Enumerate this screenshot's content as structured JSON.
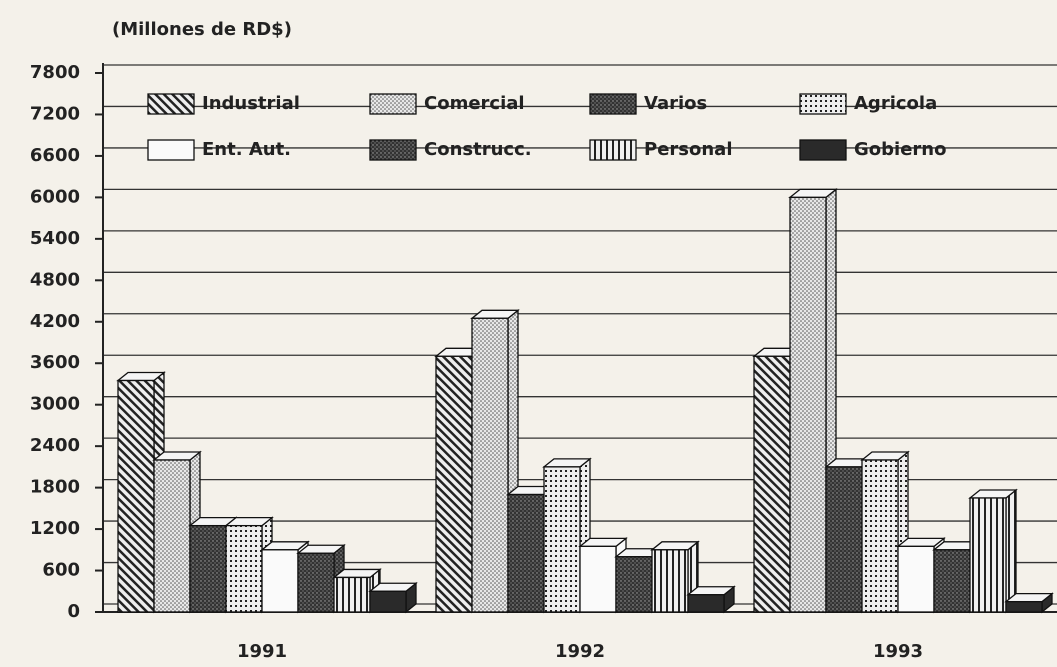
{
  "chart_data": {
    "type": "bar3d",
    "title": "(Millones de RD$)",
    "categories": [
      "1991",
      "1992",
      "1993"
    ],
    "series": [
      {
        "name": "Industrial",
        "pattern": "diagonal",
        "values": [
          3350,
          3700,
          3700
        ]
      },
      {
        "name": "Comercial",
        "pattern": "light-dots",
        "values": [
          2200,
          4250,
          6000
        ]
      },
      {
        "name": "Varios",
        "pattern": "dark-dots",
        "values": [
          1250,
          1700,
          2100
        ]
      },
      {
        "name": "Agricola",
        "pattern": "grid",
        "values": [
          1250,
          2100,
          2200
        ]
      },
      {
        "name": "Ent. Aut.",
        "pattern": "white",
        "values": [
          900,
          950,
          950
        ]
      },
      {
        "name": "Construcc.",
        "pattern": "dark-dots",
        "values": [
          850,
          800,
          900
        ]
      },
      {
        "name": "Personal",
        "pattern": "vertical",
        "values": [
          500,
          900,
          1650
        ]
      },
      {
        "name": "Gobierno",
        "pattern": "dark",
        "values": [
          300,
          250,
          150
        ]
      }
    ],
    "ylim": [
      0,
      7800
    ],
    "yticks": [
      0,
      600,
      1200,
      1800,
      2400,
      3000,
      3600,
      4200,
      4800,
      5400,
      6000,
      6600,
      7200,
      7800
    ],
    "grid": true,
    "legend": "top-left"
  }
}
